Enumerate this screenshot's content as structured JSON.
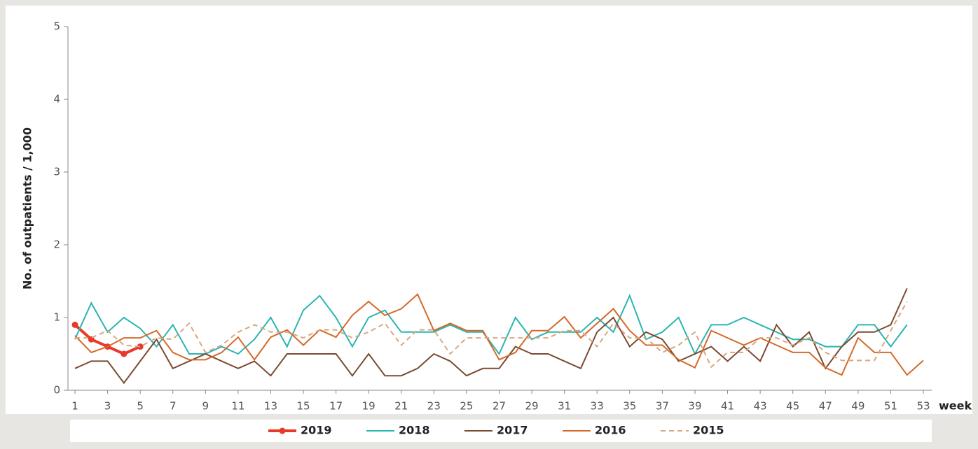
{
  "chart_data": {
    "type": "line",
    "y_label": "No. of outpatients / 1,000",
    "x_label": "week",
    "x": [
      1,
      2,
      3,
      4,
      5,
      6,
      7,
      8,
      9,
      10,
      11,
      12,
      13,
      14,
      15,
      16,
      17,
      18,
      19,
      20,
      21,
      22,
      23,
      24,
      25,
      26,
      27,
      28,
      29,
      30,
      31,
      32,
      33,
      34,
      35,
      36,
      37,
      38,
      39,
      40,
      41,
      42,
      43,
      44,
      45,
      46,
      47,
      48,
      49,
      50,
      51,
      52,
      53
    ],
    "xlim": [
      1,
      53
    ],
    "xticks": [
      1,
      3,
      5,
      7,
      9,
      11,
      13,
      15,
      17,
      19,
      21,
      23,
      25,
      27,
      29,
      31,
      33,
      35,
      37,
      39,
      41,
      43,
      45,
      47,
      49,
      51,
      53
    ],
    "ylim": [
      0,
      5
    ],
    "yticks": [
      0,
      1,
      2,
      3,
      4,
      5
    ],
    "series": [
      {
        "name": "2019",
        "color": "#e8392b",
        "markers": true,
        "values": [
          0.9,
          0.7,
          0.6,
          0.5,
          0.6,
          null,
          null,
          null,
          null,
          null,
          null,
          null,
          null,
          null,
          null,
          null,
          null,
          null,
          null,
          null,
          null,
          null,
          null,
          null,
          null,
          null,
          null,
          null,
          null,
          null,
          null,
          null,
          null,
          null,
          null,
          null,
          null,
          null,
          null,
          null,
          null,
          null,
          null,
          null,
          null,
          null,
          null,
          null,
          null,
          null,
          null,
          null,
          null
        ]
      },
      {
        "name": "2018",
        "color": "#2bb5b0",
        "values": [
          0.7,
          1.2,
          0.8,
          1.0,
          0.85,
          0.6,
          0.9,
          0.5,
          0.5,
          0.6,
          0.5,
          0.7,
          1.0,
          0.6,
          1.1,
          1.3,
          1.0,
          0.6,
          1.0,
          1.1,
          0.8,
          0.8,
          0.8,
          0.9,
          0.8,
          0.8,
          0.5,
          1.0,
          0.7,
          0.8,
          0.8,
          0.8,
          1.0,
          0.8,
          1.3,
          0.7,
          0.8,
          1.0,
          0.5,
          0.9,
          0.9,
          1.0,
          0.9,
          0.8,
          0.7,
          0.7,
          0.6,
          0.6,
          0.9,
          0.9,
          0.6,
          0.9,
          null
        ]
      },
      {
        "name": "2017",
        "color": "#7b4a30",
        "values": [
          0.3,
          0.4,
          0.4,
          0.1,
          0.4,
          0.7,
          0.3,
          0.4,
          0.5,
          0.4,
          0.3,
          0.4,
          0.2,
          0.5,
          0.5,
          0.5,
          0.5,
          0.2,
          0.5,
          0.2,
          0.2,
          0.3,
          0.5,
          0.4,
          0.2,
          0.3,
          0.3,
          0.6,
          0.5,
          0.5,
          0.4,
          0.3,
          0.8,
          1.0,
          0.6,
          0.8,
          0.7,
          0.4,
          0.5,
          0.6,
          0.4,
          0.6,
          0.4,
          0.9,
          0.6,
          0.8,
          0.3,
          0.6,
          0.8,
          0.8,
          0.9,
          1.4,
          null
        ]
      },
      {
        "name": "2016",
        "color": "#d4692a",
        "values": [
          0.75,
          0.52,
          0.6,
          0.72,
          0.72,
          0.82,
          0.52,
          0.42,
          0.42,
          0.52,
          0.73,
          0.42,
          0.73,
          0.83,
          0.62,
          0.83,
          0.73,
          1.03,
          1.22,
          1.03,
          1.12,
          1.32,
          0.82,
          0.92,
          0.82,
          0.82,
          0.42,
          0.52,
          0.82,
          0.82,
          1.01,
          0.72,
          0.92,
          1.12,
          0.82,
          0.62,
          0.62,
          0.42,
          0.31,
          0.82,
          0.72,
          0.62,
          0.72,
          0.62,
          0.52,
          0.52,
          0.31,
          0.21,
          0.72,
          0.52,
          0.52,
          0.21,
          0.41
        ]
      },
      {
        "name": "2015",
        "color": "#d9a77f",
        "dashed": true,
        "values": [
          0.72,
          0.72,
          0.82,
          0.62,
          0.6,
          0.72,
          0.7,
          0.92,
          0.52,
          0.62,
          0.8,
          0.9,
          0.8,
          0.8,
          0.72,
          0.83,
          0.83,
          0.72,
          0.8,
          0.92,
          0.62,
          0.83,
          0.83,
          0.5,
          0.72,
          0.72,
          0.72,
          0.72,
          0.72,
          0.72,
          0.82,
          0.82,
          0.6,
          0.92,
          0.72,
          0.72,
          0.52,
          0.62,
          0.8,
          0.32,
          0.52,
          0.52,
          0.72,
          0.72,
          0.62,
          0.72,
          0.52,
          0.41,
          0.41,
          0.41,
          0.82,
          1.22,
          null
        ]
      }
    ]
  }
}
